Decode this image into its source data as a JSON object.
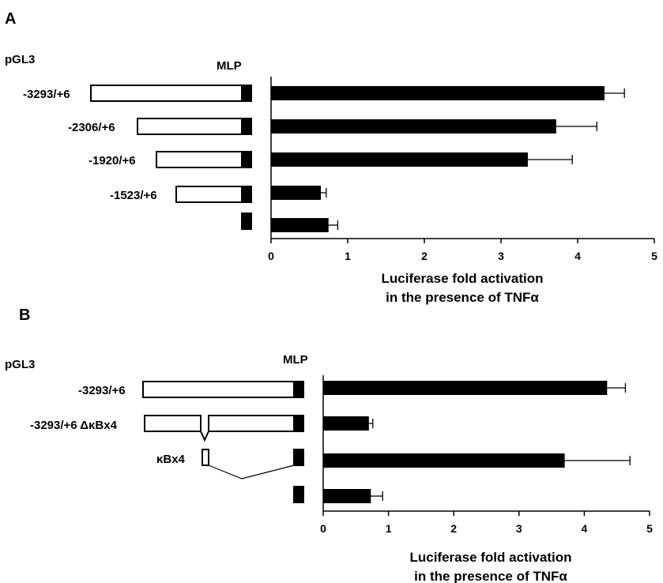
{
  "panels": [
    {
      "letter": "A",
      "vector": "pGL3",
      "element_label": "MLP",
      "constructs": [
        {
          "label": "-3293/+6",
          "start": -3293,
          "deletion": false
        },
        {
          "label": "-2306/+6",
          "start": -2306,
          "deletion": false
        },
        {
          "label": "-1920/+6",
          "start": -1920,
          "deletion": false
        },
        {
          "label": "-1523/+6",
          "start": -1523,
          "deletion": false
        },
        {
          "label": "",
          "start": 0,
          "deletion": false
        }
      ],
      "xlabel_line1": "Luciferase fold activation",
      "xlabel_line2": "in the presence of TNFα"
    },
    {
      "letter": "B",
      "vector": "pGL3",
      "element_label": "MLP",
      "constructs": [
        {
          "label": "-3293/+6",
          "type": "full"
        },
        {
          "label": "-3293/+6 ΔκBx4",
          "type": "deletion"
        },
        {
          "label": "κBx4",
          "type": "fragment"
        },
        {
          "label": "",
          "type": "minimal"
        }
      ],
      "xlabel_line1": "Luciferase fold activation",
      "xlabel_line2": "in the presence of TNFα"
    }
  ],
  "chart_data": [
    {
      "type": "bar",
      "orientation": "horizontal",
      "categories": [
        "-3293/+6",
        "-2306/+6",
        "-1920/+6",
        "-1523/+6",
        ""
      ],
      "values": [
        4.35,
        3.72,
        3.35,
        0.65,
        0.75
      ],
      "errors": [
        0.26,
        0.53,
        0.58,
        0.07,
        0.12
      ],
      "xlim": [
        0,
        5
      ],
      "xticks": [
        "0",
        "1",
        "2",
        "3",
        "4",
        "5"
      ],
      "xlabel": "Luciferase fold activation in the presence of TNFα",
      "grid": false
    },
    {
      "type": "bar",
      "orientation": "horizontal",
      "categories": [
        "-3293/+6",
        "-3293/+6 ΔκBx4",
        "κBx4",
        ""
      ],
      "values": [
        4.35,
        0.7,
        3.7,
        0.73
      ],
      "errors": [
        0.28,
        0.06,
        1.0,
        0.18
      ],
      "xlim": [
        0,
        5
      ],
      "xticks": [
        "0",
        "1",
        "2",
        "3",
        "4",
        "5"
      ],
      "xlabel": "Luciferase fold activation in the presence of TNFα",
      "grid": false
    }
  ]
}
